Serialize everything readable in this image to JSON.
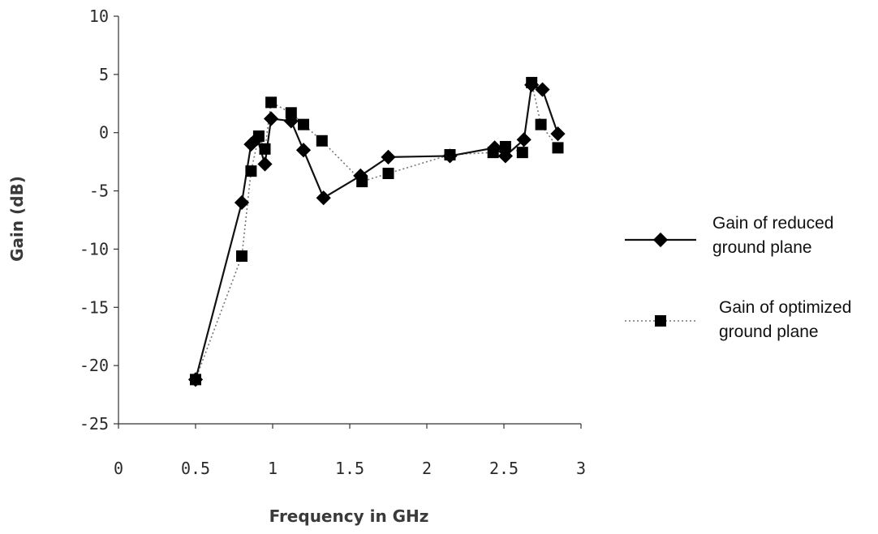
{
  "chart_data": {
    "type": "line",
    "xlabel": "Frequency in GHz",
    "ylabel": "Gain (dB)",
    "xlim": [
      0,
      3
    ],
    "ylim": [
      -25,
      10
    ],
    "xticks": [
      {
        "value": 0,
        "label": "0"
      },
      {
        "value": 0.5,
        "label": "0.5"
      },
      {
        "value": 1,
        "label": "1"
      },
      {
        "value": 1.5,
        "label": "1.5"
      },
      {
        "value": 2,
        "label": "2"
      },
      {
        "value": 2.5,
        "label": "2.5"
      },
      {
        "value": 3,
        "label": "3"
      }
    ],
    "yticks": [
      {
        "value": 10,
        "label": "10"
      },
      {
        "value": 5,
        "label": "5"
      },
      {
        "value": 0,
        "label": "0"
      },
      {
        "value": -5,
        "label": "-5"
      },
      {
        "value": -10,
        "label": "-10"
      },
      {
        "value": -15,
        "label": "-15"
      },
      {
        "value": -20,
        "label": "-20"
      },
      {
        "value": -25,
        "label": "-25"
      }
    ],
    "grid": false,
    "legend_position": "right",
    "series": [
      {
        "name": "Gain of reduced ground plane",
        "legend_lines": [
          "Gain of reduced",
          "ground plane"
        ],
        "marker": "diamond",
        "line_style": "solid",
        "color": "#000000",
        "points": [
          {
            "x": 0.5,
            "y": -21.2
          },
          {
            "x": 0.8,
            "y": -6.0
          },
          {
            "x": 0.86,
            "y": -1.0
          },
          {
            "x": 0.9,
            "y": -0.5
          },
          {
            "x": 0.95,
            "y": -2.7
          },
          {
            "x": 0.99,
            "y": 1.2
          },
          {
            "x": 1.12,
            "y": 1.0
          },
          {
            "x": 1.2,
            "y": -1.5
          },
          {
            "x": 1.33,
            "y": -5.6
          },
          {
            "x": 1.57,
            "y": -3.7
          },
          {
            "x": 1.75,
            "y": -2.1
          },
          {
            "x": 2.15,
            "y": -2.0
          },
          {
            "x": 2.44,
            "y": -1.3
          },
          {
            "x": 2.51,
            "y": -2.0
          },
          {
            "x": 2.63,
            "y": -0.6
          },
          {
            "x": 2.68,
            "y": 4.1
          },
          {
            "x": 2.75,
            "y": 3.7
          },
          {
            "x": 2.85,
            "y": -0.1
          }
        ]
      },
      {
        "name": "Gain of optimized ground plane",
        "legend_lines": [
          "Gain of optimized",
          "ground plane"
        ],
        "marker": "square",
        "line_style": "dotted",
        "color": "#000000",
        "points": [
          {
            "x": 0.5,
            "y": -21.2
          },
          {
            "x": 0.8,
            "y": -10.6
          },
          {
            "x": 0.86,
            "y": -3.3
          },
          {
            "x": 0.91,
            "y": -0.3
          },
          {
            "x": 0.95,
            "y": -1.4
          },
          {
            "x": 0.99,
            "y": 2.6
          },
          {
            "x": 1.12,
            "y": 1.7
          },
          {
            "x": 1.2,
            "y": 0.7
          },
          {
            "x": 1.32,
            "y": -0.7
          },
          {
            "x": 1.58,
            "y": -4.2
          },
          {
            "x": 1.75,
            "y": -3.5
          },
          {
            "x": 2.15,
            "y": -1.9
          },
          {
            "x": 2.43,
            "y": -1.7
          },
          {
            "x": 2.51,
            "y": -1.2
          },
          {
            "x": 2.62,
            "y": -1.7
          },
          {
            "x": 2.68,
            "y": 4.3
          },
          {
            "x": 2.74,
            "y": 0.7
          },
          {
            "x": 2.85,
            "y": -1.3
          }
        ]
      }
    ]
  }
}
